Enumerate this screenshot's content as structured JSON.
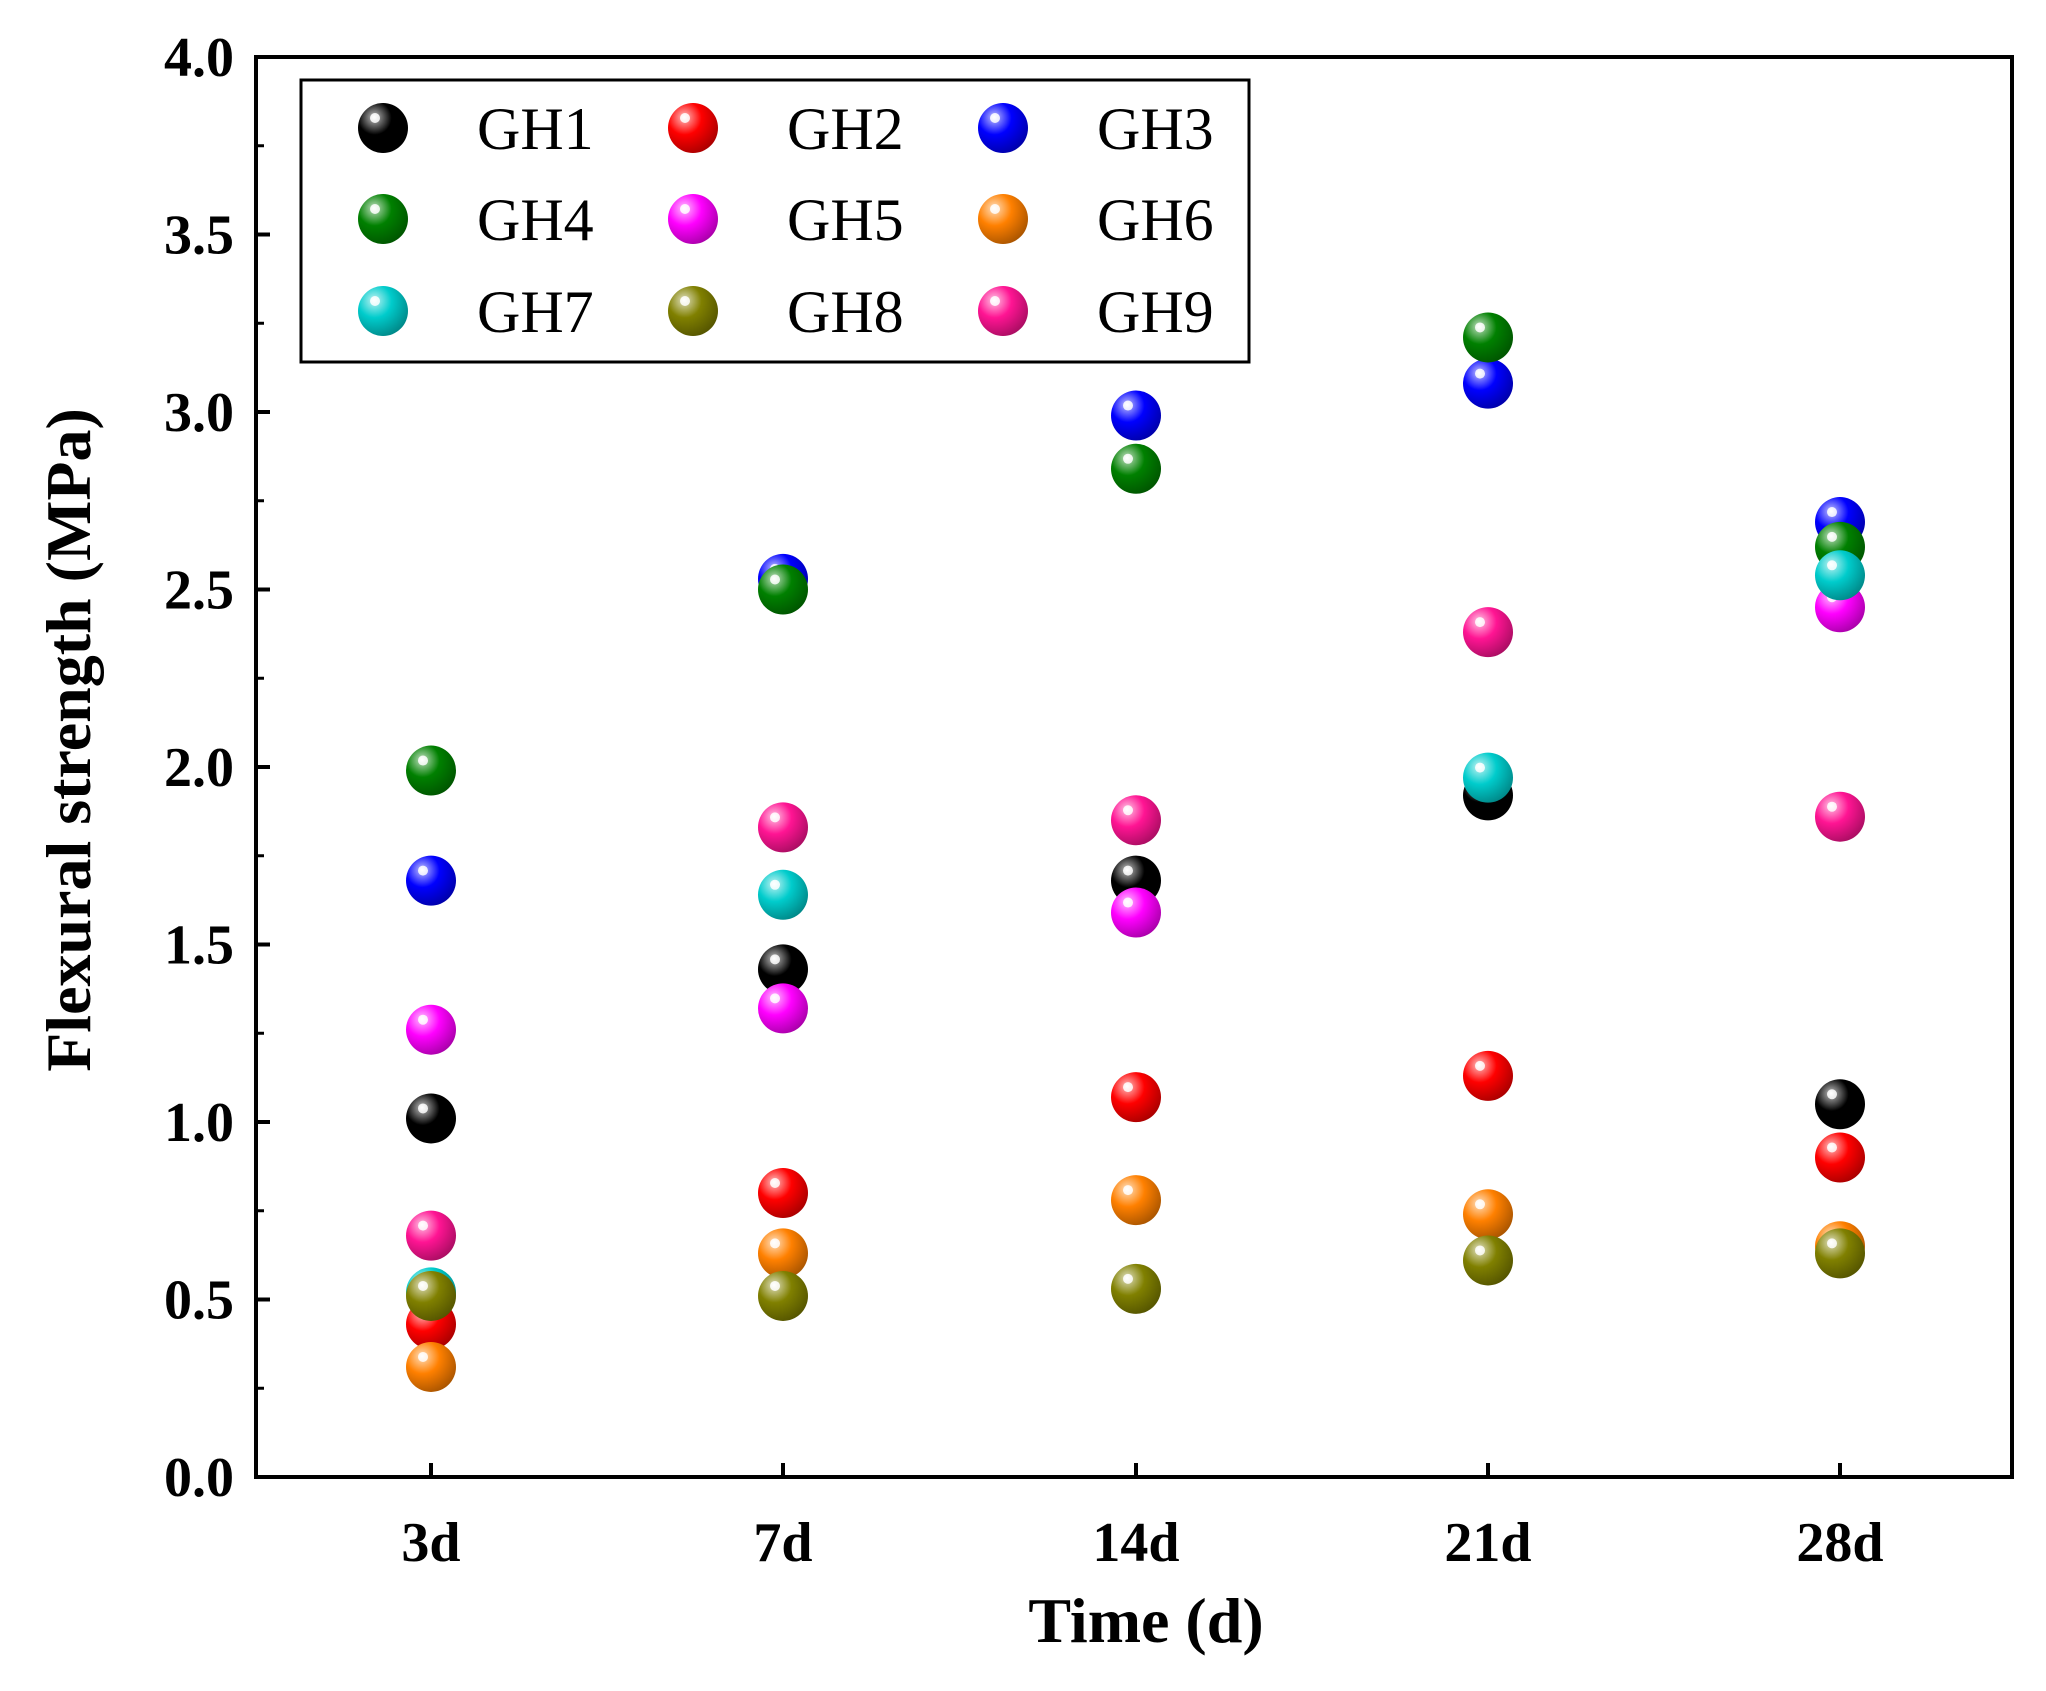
{
  "chart_data": {
    "type": "scatter",
    "xlabel": "Time (d)",
    "ylabel": "Flexural strength (MPa)",
    "categories": [
      "3d",
      "7d",
      "14d",
      "21d",
      "28d"
    ],
    "ylim": [
      0.0,
      4.0
    ],
    "yticks": [
      "0.0",
      "0.5",
      "1.0",
      "1.5",
      "2.0",
      "2.5",
      "3.0",
      "3.5",
      "4.0"
    ],
    "legend_position": "top-left",
    "legend_columns": 3,
    "grid": false,
    "series": [
      {
        "name": "GH1",
        "color": "#000000",
        "values": [
          1.01,
          1.43,
          1.68,
          1.92,
          1.05
        ]
      },
      {
        "name": "GH2",
        "color": "#ff0000",
        "values": [
          0.43,
          0.8,
          1.07,
          1.13,
          0.9
        ]
      },
      {
        "name": "GH3",
        "color": "#0000ff",
        "values": [
          1.68,
          2.53,
          2.99,
          3.08,
          2.69
        ]
      },
      {
        "name": "GH4",
        "color": "#008000",
        "values": [
          1.99,
          2.5,
          2.84,
          3.21,
          2.62
        ]
      },
      {
        "name": "GH5",
        "color": "#ff00ff",
        "values": [
          1.26,
          1.32,
          1.59,
          null,
          2.45
        ]
      },
      {
        "name": "GH6",
        "color": "#ff8000",
        "values": [
          0.31,
          0.63,
          0.78,
          0.74,
          0.65
        ]
      },
      {
        "name": "GH7",
        "color": "#00cccc",
        "values": [
          0.52,
          1.64,
          null,
          1.97,
          2.54
        ]
      },
      {
        "name": "GH8",
        "color": "#808000",
        "values": [
          0.51,
          0.51,
          0.53,
          0.61,
          0.63
        ]
      },
      {
        "name": "GH9",
        "color": "#ff1493",
        "values": [
          0.68,
          1.83,
          1.85,
          2.38,
          1.86
        ]
      }
    ]
  }
}
